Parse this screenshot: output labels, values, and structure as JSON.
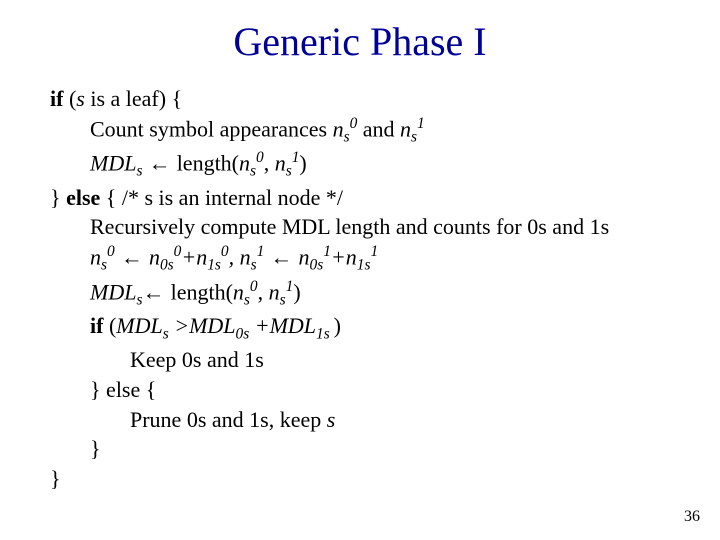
{
  "title": "Generic Phase I",
  "title_color": "#000099",
  "title_fontsize": 40,
  "body_fontsize": 22,
  "page_number": "36",
  "lines": {
    "l1_kw_if": "if",
    "l1_open": " (",
    "l1_s": "s",
    "l1_rest": " is a leaf) {",
    "l2_prefix": "Count symbol appearances ",
    "l2_n": "n",
    "l2_sub_s": "s",
    "l2_sup_0": "0",
    "l2_and": " and ",
    "l2_sup_1": "1",
    "l3_mdl": "MDL",
    "l3_sub_s": "s",
    "l3_arrow": " ← ",
    "l3_len": "length(",
    "l3_n": "n",
    "l3_comma": ", ",
    "l3_close": ")",
    "l4_close": "} ",
    "l4_else": "else",
    "l4_open": " { ",
    "l4_comment": "/* s is an internal node */",
    "l5": "Recursively compute MDL length and counts for 0s and 1s",
    "l6_n": "n",
    "l6_sub_s": "s",
    "l6_sup_0": "0",
    "l6_arrow": " ← ",
    "l6_sub_0s": "0s",
    "l6_plus": "+",
    "l6_sub_1s": "1s",
    "l6_comma": ",  ",
    "l6_sup_1": "1",
    "l7_mdl": "MDL",
    "l7_arrow": "← ",
    "l7_len": "length(",
    "l7_close": ")",
    "l8_if": "if",
    "l8_open": " (",
    "l8_mdl": "MDL",
    "l8_gt": " >",
    "l8_sub0s": "0s",
    "l8_sp_plus": " +",
    "l8_sub1s": "1s ",
    "l8_close": ")",
    "l9": "Keep 0s and 1s",
    "l10": "} else {",
    "l11_a": "Prune 0s and 1s, keep ",
    "l11_s": "s",
    "l12": "}",
    "l13": "}"
  }
}
